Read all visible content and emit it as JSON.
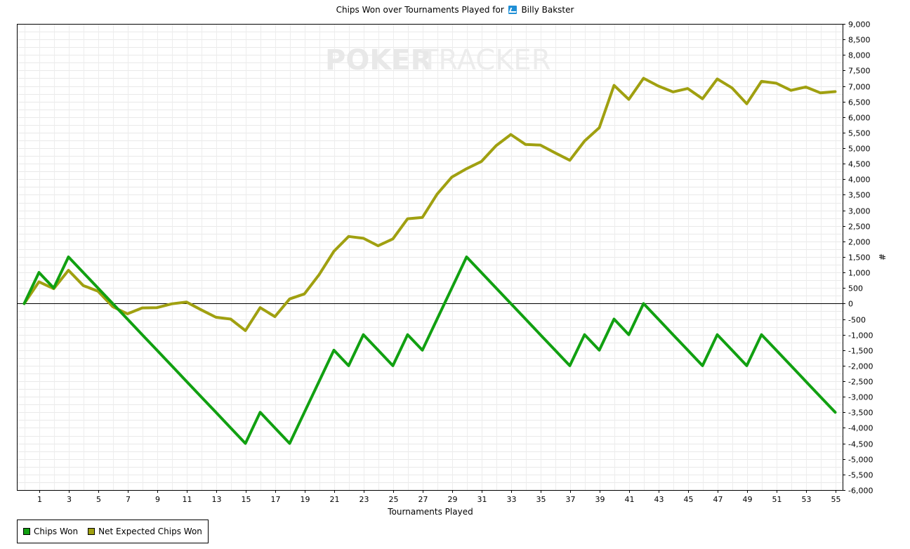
{
  "header": {
    "title_prefix": "Chips Won over Tournaments Played for",
    "player_icon": "player-site-icon",
    "player_name": "Billy Bakster"
  },
  "watermark": {
    "part1": "POKER",
    "part2": "TRACKER"
  },
  "legend": {
    "items": [
      {
        "label": "Chips Won",
        "color": "#11a011"
      },
      {
        "label": "Net Expected Chips Won",
        "color": "#a0a010"
      }
    ]
  },
  "chart_data": {
    "type": "line",
    "title": "Chips Won over Tournaments Played for Billy Bakster",
    "xlabel": "Tournaments Played",
    "ylabel": "#",
    "xlim": [
      -0.5,
      55.5
    ],
    "ylim": [
      -6000,
      9000
    ],
    "x_ticks": [
      1,
      3,
      5,
      7,
      9,
      11,
      13,
      15,
      17,
      19,
      21,
      23,
      25,
      27,
      29,
      31,
      33,
      35,
      37,
      39,
      41,
      43,
      45,
      47,
      49,
      51,
      53,
      55
    ],
    "y_ticks": [
      9000,
      8500,
      8000,
      7500,
      7000,
      6500,
      6000,
      5500,
      5000,
      4500,
      4000,
      3500,
      3000,
      2500,
      2000,
      1500,
      1000,
      500,
      0,
      -500,
      -1000,
      -1500,
      -2000,
      -2500,
      -3000,
      -3500,
      -4000,
      -4500,
      -5000,
      -5500,
      -6000
    ],
    "y_tick_labels": [
      "9,000",
      "8,500",
      "8,000",
      "7,500",
      "7,000",
      "6,500",
      "6,000",
      "5,500",
      "5,000",
      "4,500",
      "4,000",
      "3,500",
      "3,000",
      "2,500",
      "2,000",
      "1,500",
      "1,000",
      "500",
      "0",
      "-500",
      "-1,000",
      "-1,500",
      "-2,000",
      "-2,500",
      "-3,000",
      "-3,500",
      "-4,000",
      "-4,500",
      "-5,000",
      "-5,500",
      "-6,000"
    ],
    "grid": true,
    "legend_position": "bottom-left",
    "zero_line": true,
    "x": [
      0,
      1,
      2,
      3,
      4,
      5,
      6,
      7,
      8,
      9,
      10,
      11,
      12,
      13,
      14,
      15,
      16,
      17,
      18,
      19,
      20,
      21,
      22,
      23,
      24,
      25,
      26,
      27,
      28,
      29,
      30,
      31,
      32,
      33,
      34,
      35,
      36,
      37,
      38,
      39,
      40,
      41,
      42,
      43,
      44,
      45,
      46,
      47,
      48,
      49,
      50,
      51,
      52,
      53,
      54,
      55
    ],
    "series": [
      {
        "name": "Chips Won",
        "color": "#11a011",
        "values": [
          0,
          1000,
          500,
          1500,
          1000,
          500,
          0,
          -500,
          -1000,
          -1500,
          -2000,
          -2500,
          -3000,
          -3500,
          -4000,
          -4500,
          -3500,
          -4000,
          -4500,
          -3500,
          -2500,
          -1500,
          -2000,
          -1000,
          -1500,
          -2000,
          -1000,
          -1500,
          -500,
          500,
          1500,
          1000,
          500,
          0,
          -500,
          -1000,
          -1500,
          -2000,
          -1000,
          -1500,
          -500,
          -1000,
          0,
          -500,
          -1000,
          -1500,
          -2000,
          -1000,
          -1500,
          -2000,
          -1000,
          -1500,
          -2000,
          -2500,
          -3000,
          -3500
        ]
      },
      {
        "name": "Net Expected Chips Won",
        "color": "#a0a010",
        "values": [
          0,
          700,
          480,
          1070,
          580,
          400,
          -100,
          -330,
          -140,
          -130,
          -10,
          50,
          -200,
          -440,
          -500,
          -870,
          -130,
          -420,
          150,
          310,
          930,
          1680,
          2160,
          2100,
          1860,
          2080,
          2730,
          2770,
          3520,
          4070,
          4340,
          4570,
          5080,
          5440,
          5120,
          5100,
          4850,
          4610,
          5230,
          5660,
          7020,
          6570,
          7250,
          7000,
          6810,
          6920,
          6590,
          7230,
          6940,
          6430,
          7150,
          7090,
          6860,
          6970,
          6780,
          6820
        ]
      }
    ]
  }
}
